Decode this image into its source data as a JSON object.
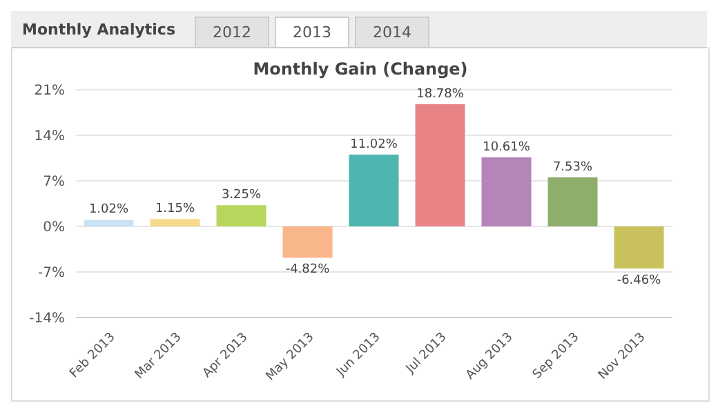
{
  "chart_data": {
    "type": "bar",
    "title": "Monthly Gain (Change)",
    "annotations": [
      "Monthly Analytics",
      "2012",
      "2013",
      "2014"
    ],
    "categories": [
      "Feb 2013",
      "Mar 2013",
      "Apr 2013",
      "May 2013",
      "Jun 2013",
      "Jul 2013",
      "Aug 2013",
      "Sep 2013",
      "Nov 2013"
    ],
    "values": [
      1.02,
      1.15,
      3.25,
      -4.82,
      11.02,
      18.78,
      10.61,
      7.53,
      -6.46
    ],
    "value_labels": [
      "1.02%",
      "1.15%",
      "3.25%",
      "-4.82%",
      "11.02%",
      "18.78%",
      "10.61%",
      "7.53%",
      "-6.46%"
    ],
    "colors": [
      "#c9e3f4",
      "#f7d98a",
      "#b7d65e",
      "#f9b68a",
      "#4fb5b0",
      "#e88486",
      "#b585b9",
      "#8fad6b",
      "#c9c25c"
    ],
    "ylim": [
      -14,
      21
    ],
    "yticks": [
      {
        "value": -14,
        "label": "-14%"
      },
      {
        "value": -7,
        "label": "-7%"
      },
      {
        "value": 0,
        "label": "0%"
      },
      {
        "value": 7,
        "label": "7%"
      },
      {
        "value": 14,
        "label": "14%"
      },
      {
        "value": 21,
        "label": "21%"
      }
    ],
    "grid": "y"
  }
}
